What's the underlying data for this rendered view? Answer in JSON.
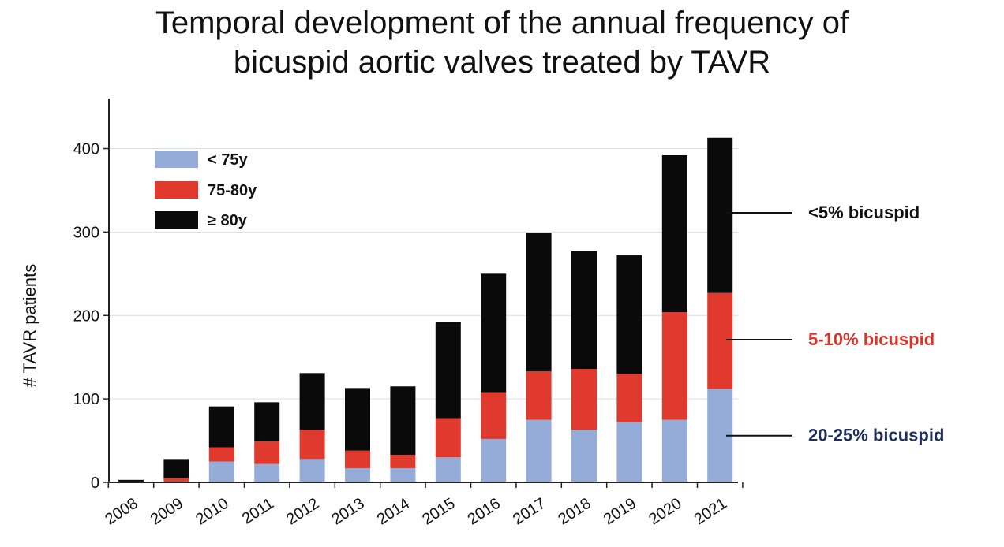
{
  "title_line1": "Temporal development of the annual frequency of",
  "title_line2": "bicuspid aortic valves treated by TAVR",
  "chart_data": {
    "type": "bar",
    "stacked": true,
    "title": "Temporal development of the annual frequency of bicuspid aortic valves treated by TAVR",
    "xlabel": "",
    "ylabel": "# TAVR patients",
    "ylim": [
      0,
      460
    ],
    "yticks": [
      0,
      100,
      200,
      300,
      400
    ],
    "grid": true,
    "legend_position": "top-left",
    "categories": [
      "2008",
      "2009",
      "2010",
      "2011",
      "2012",
      "2013",
      "2014",
      "2015",
      "2016",
      "2017",
      "2018",
      "2019",
      "2020",
      "2021"
    ],
    "series": [
      {
        "name": "< 75y",
        "color": "#95acd9",
        "values": [
          0,
          1,
          25,
          22,
          28,
          17,
          17,
          30,
          52,
          75,
          63,
          72,
          75,
          112
        ]
      },
      {
        "name": "75-80y",
        "color": "#e03a2f",
        "values": [
          1,
          4,
          17,
          27,
          35,
          21,
          16,
          47,
          56,
          58,
          73,
          58,
          129,
          115
        ]
      },
      {
        "name": "≥ 80y",
        "color": "#0a0a0a",
        "values": [
          2,
          23,
          49,
          47,
          68,
          75,
          82,
          115,
          142,
          166,
          141,
          142,
          188,
          186
        ]
      }
    ],
    "annotations": [
      {
        "text": "<5% bicuspid",
        "color": "#111111",
        "y": 323
      },
      {
        "text": "5-10% bicuspid",
        "color": "#d9342a",
        "y": 171
      },
      {
        "text": "20-25% bicuspid",
        "color": "#1f2f5c",
        "y": 56
      }
    ]
  }
}
